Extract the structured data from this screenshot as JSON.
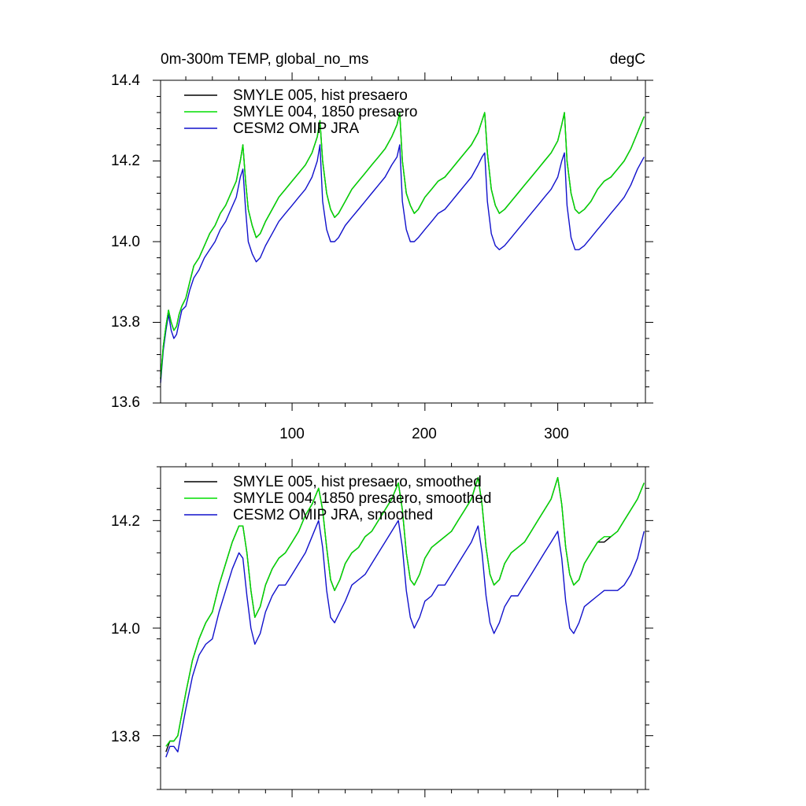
{
  "colors": {
    "black": "#000000",
    "green": "#00dd00",
    "blue": "#1111cc"
  },
  "chart_data": [
    {
      "id": "top",
      "type": "line",
      "title_left": "0m-300m TEMP, global_no_ms",
      "title_right": "degC",
      "xlim": [
        1,
        366
      ],
      "ylim": [
        13.6,
        14.4
      ],
      "xticks": [
        100,
        200,
        300
      ],
      "xtick_labels": [
        "100",
        "200",
        "300"
      ],
      "yticks": [
        13.6,
        13.8,
        14.0,
        14.2,
        14.4
      ],
      "ytick_labels": [
        "13.6",
        "13.8",
        "14.0",
        "14.2",
        "14.4"
      ],
      "legend_location": "top-left",
      "legend": [
        {
          "label": "SMYLE 005, hist presaero",
          "color": "#000000"
        },
        {
          "label": "SMYLE 004, 1850 presaero",
          "color": "#00dd00"
        },
        {
          "label": "CESM2 OMIP JRA",
          "color": "#1111cc"
        }
      ],
      "x": [
        1,
        3,
        5,
        7,
        9,
        11,
        13,
        15,
        17,
        20,
        23,
        26,
        30,
        34,
        38,
        42,
        46,
        50,
        54,
        58,
        61,
        63,
        65,
        67,
        70,
        73,
        76,
        80,
        85,
        90,
        95,
        100,
        105,
        110,
        115,
        119,
        121,
        123,
        126,
        129,
        132,
        135,
        140,
        145,
        150,
        155,
        160,
        165,
        170,
        175,
        179,
        181,
        183,
        186,
        189,
        192,
        195,
        200,
        205,
        210,
        215,
        220,
        225,
        230,
        235,
        240,
        243,
        245,
        247,
        250,
        253,
        256,
        260,
        265,
        270,
        275,
        280,
        285,
        290,
        295,
        300,
        303,
        305,
        307,
        310,
        313,
        316,
        320,
        325,
        330,
        335,
        340,
        345,
        350,
        355,
        360,
        365
      ],
      "series": [
        {
          "name": "SMYLE 005, hist presaero",
          "color": "#000000",
          "values": [
            13.66,
            13.74,
            13.79,
            13.83,
            13.8,
            13.78,
            13.79,
            13.82,
            13.84,
            13.86,
            13.9,
            13.94,
            13.96,
            13.99,
            14.02,
            14.04,
            14.07,
            14.09,
            14.12,
            14.15,
            14.2,
            14.24,
            14.15,
            14.08,
            14.04,
            14.01,
            14.02,
            14.05,
            14.08,
            14.11,
            14.13,
            14.15,
            14.17,
            14.19,
            14.22,
            14.26,
            14.3,
            14.2,
            14.12,
            14.08,
            14.06,
            14.07,
            14.1,
            14.13,
            14.15,
            14.17,
            14.19,
            14.21,
            14.23,
            14.26,
            14.29,
            14.32,
            14.2,
            14.12,
            14.09,
            14.07,
            14.08,
            14.11,
            14.13,
            14.15,
            14.16,
            14.18,
            14.2,
            14.22,
            14.24,
            14.27,
            14.3,
            14.32,
            14.22,
            14.13,
            14.09,
            14.07,
            14.08,
            14.1,
            14.12,
            14.14,
            14.16,
            14.18,
            14.2,
            14.22,
            14.25,
            14.29,
            14.32,
            14.2,
            14.12,
            14.08,
            14.07,
            14.08,
            14.1,
            14.13,
            14.15,
            14.16,
            14.18,
            14.2,
            14.23,
            14.27,
            14.31
          ]
        },
        {
          "name": "SMYLE 004, 1850 presaero",
          "color": "#00dd00",
          "values": [
            13.66,
            13.74,
            13.79,
            13.83,
            13.8,
            13.78,
            13.79,
            13.82,
            13.84,
            13.86,
            13.9,
            13.94,
            13.96,
            13.99,
            14.02,
            14.04,
            14.07,
            14.09,
            14.12,
            14.15,
            14.2,
            14.24,
            14.15,
            14.08,
            14.04,
            14.01,
            14.02,
            14.05,
            14.08,
            14.11,
            14.13,
            14.15,
            14.17,
            14.19,
            14.22,
            14.26,
            14.3,
            14.2,
            14.12,
            14.08,
            14.06,
            14.07,
            14.1,
            14.13,
            14.15,
            14.17,
            14.19,
            14.21,
            14.23,
            14.26,
            14.29,
            14.32,
            14.2,
            14.12,
            14.09,
            14.07,
            14.08,
            14.11,
            14.13,
            14.15,
            14.16,
            14.18,
            14.2,
            14.22,
            14.24,
            14.27,
            14.3,
            14.32,
            14.22,
            14.13,
            14.09,
            14.07,
            14.08,
            14.1,
            14.12,
            14.14,
            14.16,
            14.18,
            14.2,
            14.22,
            14.25,
            14.29,
            14.32,
            14.2,
            14.12,
            14.08,
            14.07,
            14.08,
            14.1,
            14.13,
            14.15,
            14.16,
            14.18,
            14.2,
            14.23,
            14.27,
            14.31
          ]
        },
        {
          "name": "CESM2 OMIP JRA",
          "color": "#1111cc",
          "values": [
            13.65,
            13.73,
            13.78,
            13.82,
            13.78,
            13.76,
            13.77,
            13.8,
            13.83,
            13.84,
            13.88,
            13.91,
            13.93,
            13.96,
            13.98,
            14.0,
            14.03,
            14.05,
            14.08,
            14.11,
            14.16,
            14.18,
            14.08,
            14.0,
            13.97,
            13.95,
            13.96,
            13.99,
            14.02,
            14.05,
            14.07,
            14.09,
            14.11,
            14.13,
            14.16,
            14.2,
            14.24,
            14.1,
            14.03,
            14.0,
            14.0,
            14.01,
            14.04,
            14.06,
            14.08,
            14.1,
            14.12,
            14.14,
            14.16,
            14.19,
            14.21,
            14.24,
            14.1,
            14.03,
            14.0,
            14.0,
            14.01,
            14.03,
            14.05,
            14.07,
            14.08,
            14.1,
            14.12,
            14.14,
            14.16,
            14.19,
            14.21,
            14.22,
            14.1,
            14.02,
            13.99,
            13.98,
            13.99,
            14.01,
            14.03,
            14.05,
            14.07,
            14.09,
            14.11,
            14.13,
            14.16,
            14.2,
            14.22,
            14.09,
            14.01,
            13.98,
            13.98,
            13.99,
            14.01,
            14.03,
            14.05,
            14.07,
            14.09,
            14.11,
            14.14,
            14.18,
            14.21
          ]
        }
      ]
    },
    {
      "id": "bottom",
      "type": "line",
      "xlim": [
        1,
        366
      ],
      "ylim": [
        13.7,
        14.3
      ],
      "xticks": [
        100,
        200,
        300
      ],
      "yticks": [
        13.8,
        14.0,
        14.2
      ],
      "ytick_labels": [
        "13.8",
        "14.0",
        "14.2"
      ],
      "legend_location": "top-left",
      "legend": [
        {
          "label": "SMYLE 005, hist presaero, smoothed",
          "color": "#000000"
        },
        {
          "label": "SMYLE 004, 1850 presaero, smoothed",
          "color": "#00dd00"
        },
        {
          "label": "CESM2 OMIP JRA, smoothed",
          "color": "#1111cc"
        }
      ],
      "x": [
        5,
        8,
        11,
        14,
        17,
        20,
        25,
        30,
        35,
        40,
        45,
        50,
        55,
        60,
        63,
        66,
        69,
        72,
        76,
        80,
        85,
        90,
        95,
        100,
        105,
        110,
        115,
        120,
        123,
        126,
        129,
        132,
        136,
        140,
        145,
        150,
        155,
        160,
        165,
        170,
        175,
        180,
        183,
        186,
        189,
        192,
        196,
        200,
        205,
        210,
        215,
        220,
        225,
        230,
        235,
        240,
        243,
        246,
        249,
        252,
        256,
        260,
        265,
        270,
        275,
        280,
        285,
        290,
        295,
        300,
        303,
        306,
        309,
        312,
        316,
        320,
        325,
        330,
        335,
        340,
        345,
        350,
        355,
        360,
        365
      ],
      "series": [
        {
          "name": "SMYLE 005, hist presaero, smoothed",
          "color": "#000000",
          "values": [
            13.77,
            13.79,
            13.79,
            13.8,
            13.84,
            13.88,
            13.94,
            13.98,
            14.01,
            14.03,
            14.08,
            14.12,
            14.16,
            14.19,
            14.19,
            14.14,
            14.07,
            14.02,
            14.04,
            14.08,
            14.11,
            14.13,
            14.14,
            14.16,
            14.18,
            14.21,
            14.23,
            14.26,
            14.22,
            14.15,
            14.09,
            14.07,
            14.09,
            14.12,
            14.14,
            14.15,
            14.17,
            14.18,
            14.2,
            14.22,
            14.24,
            14.27,
            14.22,
            14.14,
            14.09,
            14.08,
            14.1,
            14.13,
            14.15,
            14.16,
            14.17,
            14.18,
            14.2,
            14.22,
            14.24,
            14.28,
            14.23,
            14.15,
            14.1,
            14.08,
            14.09,
            14.12,
            14.14,
            14.15,
            14.16,
            14.18,
            14.2,
            14.22,
            14.24,
            14.28,
            14.23,
            14.15,
            14.1,
            14.08,
            14.09,
            14.12,
            14.14,
            14.16,
            14.16,
            14.17,
            14.18,
            14.2,
            14.22,
            14.24,
            14.27
          ]
        },
        {
          "name": "SMYLE 004, 1850 presaero, smoothed",
          "color": "#00dd00",
          "values": [
            13.78,
            13.79,
            13.79,
            13.8,
            13.84,
            13.88,
            13.94,
            13.98,
            14.01,
            14.03,
            14.08,
            14.12,
            14.16,
            14.19,
            14.19,
            14.14,
            14.07,
            14.02,
            14.04,
            14.08,
            14.11,
            14.13,
            14.14,
            14.16,
            14.18,
            14.21,
            14.23,
            14.26,
            14.22,
            14.15,
            14.09,
            14.07,
            14.09,
            14.12,
            14.14,
            14.15,
            14.17,
            14.18,
            14.2,
            14.22,
            14.24,
            14.27,
            14.22,
            14.14,
            14.09,
            14.08,
            14.1,
            14.13,
            14.15,
            14.16,
            14.17,
            14.18,
            14.2,
            14.22,
            14.24,
            14.28,
            14.23,
            14.15,
            14.1,
            14.08,
            14.09,
            14.12,
            14.14,
            14.15,
            14.16,
            14.18,
            14.2,
            14.22,
            14.24,
            14.28,
            14.23,
            14.15,
            14.1,
            14.08,
            14.09,
            14.12,
            14.14,
            14.16,
            14.17,
            14.17,
            14.18,
            14.2,
            14.22,
            14.24,
            14.27
          ]
        },
        {
          "name": "CESM2 OMIP JRA, smoothed",
          "color": "#1111cc",
          "values": [
            13.76,
            13.78,
            13.78,
            13.77,
            13.81,
            13.85,
            13.91,
            13.95,
            13.97,
            13.98,
            14.03,
            14.07,
            14.11,
            14.14,
            14.13,
            14.06,
            14.0,
            13.97,
            13.99,
            14.03,
            14.06,
            14.08,
            14.08,
            14.1,
            14.12,
            14.14,
            14.17,
            14.2,
            14.15,
            14.07,
            14.02,
            14.01,
            14.03,
            14.05,
            14.08,
            14.09,
            14.1,
            14.12,
            14.14,
            14.16,
            14.18,
            14.2,
            14.15,
            14.07,
            14.02,
            14.0,
            14.02,
            14.05,
            14.06,
            14.08,
            14.08,
            14.1,
            14.12,
            14.14,
            14.16,
            14.19,
            14.14,
            14.06,
            14.01,
            13.99,
            14.01,
            14.04,
            14.06,
            14.06,
            14.08,
            14.1,
            14.12,
            14.14,
            14.16,
            14.18,
            14.13,
            14.05,
            14.0,
            13.99,
            14.01,
            14.04,
            14.05,
            14.06,
            14.07,
            14.07,
            14.07,
            14.08,
            14.1,
            14.13,
            14.18
          ]
        }
      ]
    }
  ]
}
